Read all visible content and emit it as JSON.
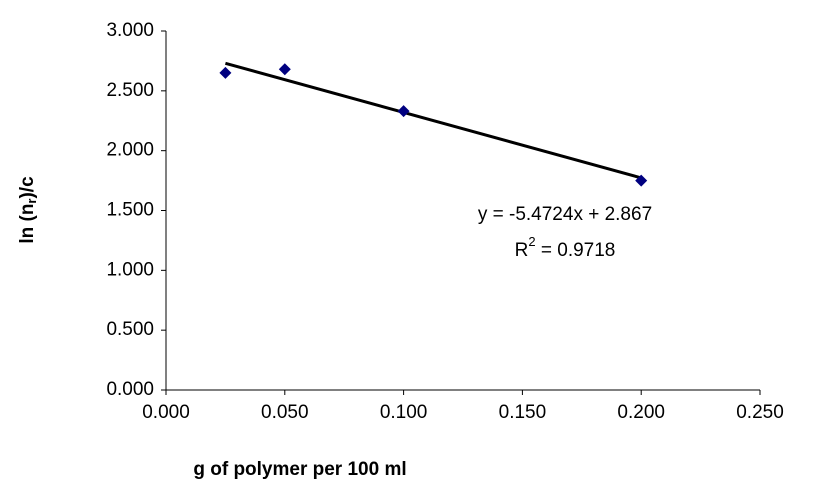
{
  "chart_data": {
    "type": "scatter",
    "x_label": "g of polymer per 100 ml",
    "y_label": {
      "before": "ln (n",
      "sub": "r",
      "after": ")/c"
    },
    "series": [
      {
        "color": "#000080",
        "x": [
          0.025,
          0.05,
          0.1,
          0.2
        ],
        "values": [
          2.65,
          2.68,
          2.33,
          1.75
        ]
      }
    ],
    "trendline": {
      "color": "#000000",
      "x": [
        0.025,
        0.2
      ],
      "values": [
        2.7302,
        1.7725
      ]
    },
    "annotations": {
      "equation": "y = -5.4724x + 2.867",
      "r2": {
        "base": "R",
        "sup": "2",
        "rest": " = 0.9718"
      }
    },
    "xlim": [
      0,
      0.25
    ],
    "ylim": [
      0,
      3
    ],
    "xticks": [
      {
        "value": 0,
        "label": "0.000"
      },
      {
        "value": 0.05,
        "label": "0.050"
      },
      {
        "value": 0.1,
        "label": "0.100"
      },
      {
        "value": 0.15,
        "label": "0.150"
      },
      {
        "value": 0.2,
        "label": "0.200"
      },
      {
        "value": 0.25,
        "label": "0.250"
      }
    ],
    "yticks": [
      {
        "value": 0,
        "label": "0.000"
      },
      {
        "value": 0.5,
        "label": "0.500"
      },
      {
        "value": 1,
        "label": "1.000"
      },
      {
        "value": 1.5,
        "label": "1.500"
      },
      {
        "value": 2,
        "label": "2.000"
      },
      {
        "value": 2.5,
        "label": "2.500"
      },
      {
        "value": 3,
        "label": "3.000"
      }
    ]
  }
}
